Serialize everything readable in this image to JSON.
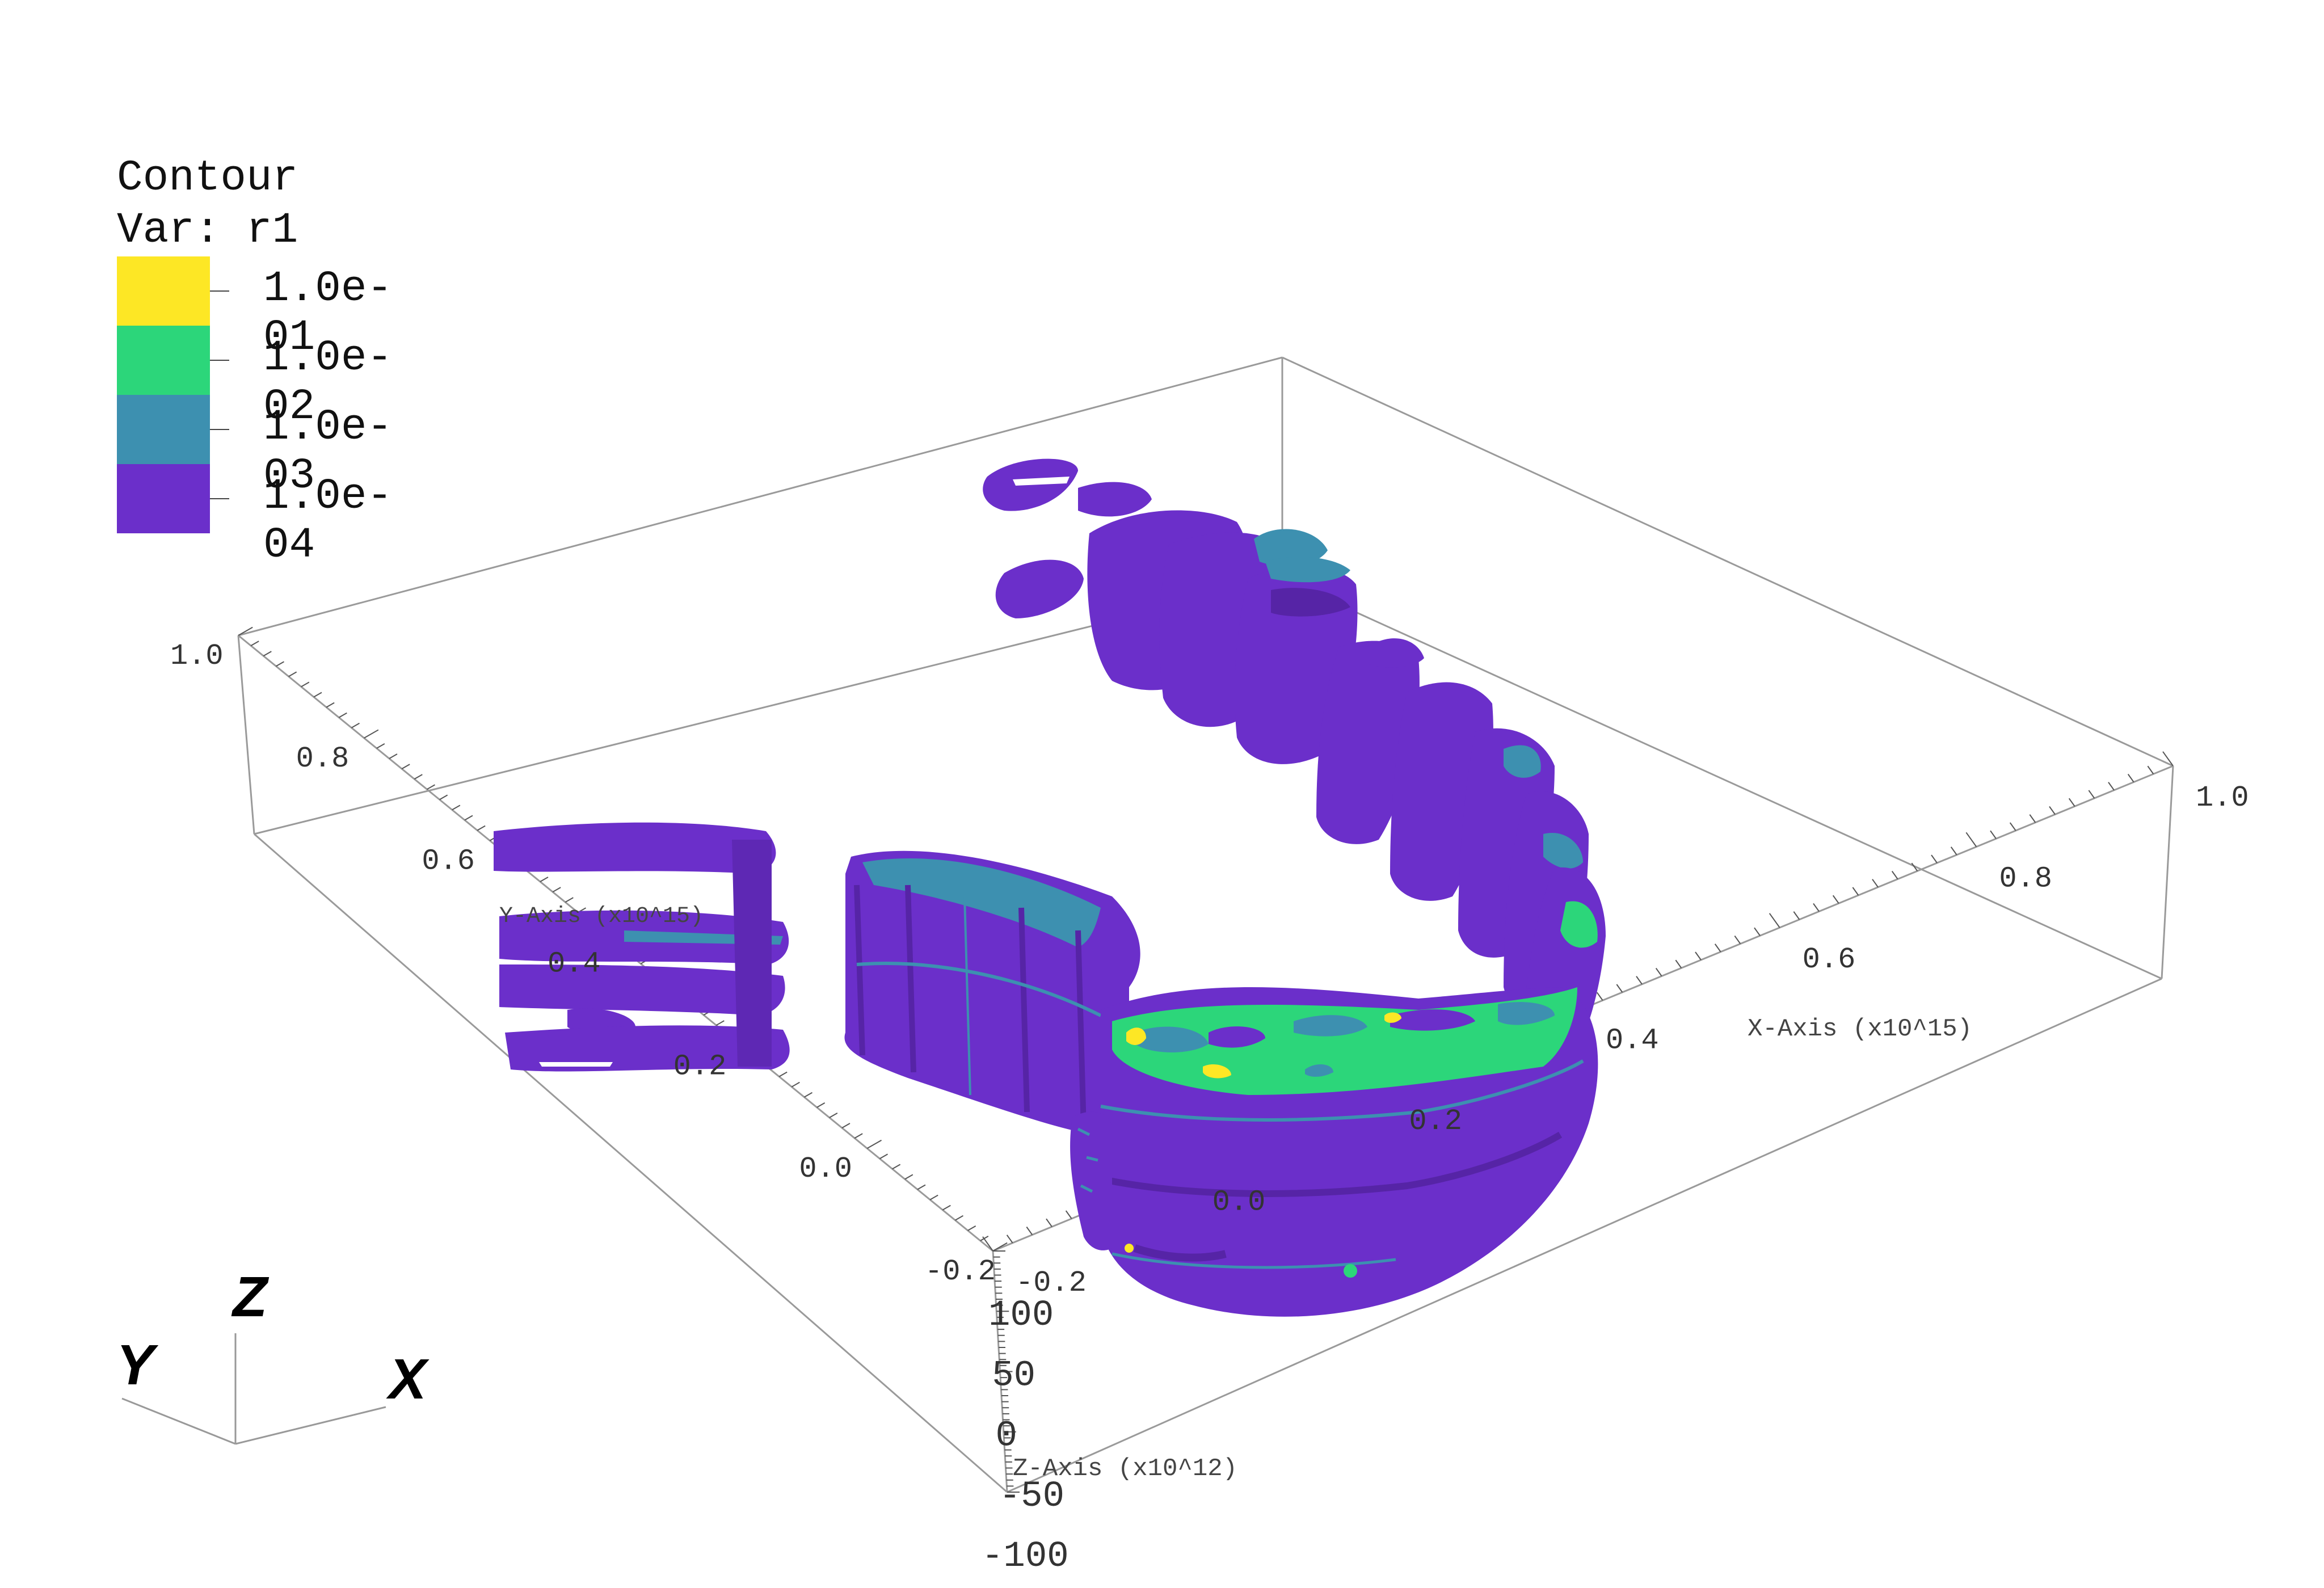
{
  "chart_data": {
    "type": "contour-3d",
    "plot": "Contour",
    "variable_line": "Var: r1",
    "levels": [
      {
        "label": "1.0e-01",
        "value": 0.1,
        "color": "#fde725"
      },
      {
        "label": "1.0e-02",
        "value": 0.01,
        "color": "#2cd67a"
      },
      {
        "label": "1.0e-03",
        "value": 0.001,
        "color": "#3d90b0"
      },
      {
        "label": "1.0e-04",
        "value": 0.0001,
        "color": "#6b2fca"
      }
    ],
    "x_axis": {
      "label": "X-Axis (x10^15)",
      "range": [
        -0.2,
        1.0
      ],
      "ticks": [
        "-0.2",
        "0.0",
        "0.2",
        "0.4",
        "0.6",
        "0.8",
        "1.0"
      ]
    },
    "y_axis": {
      "label": "Y-Axis (x10^15)",
      "range": [
        -0.2,
        1.0
      ],
      "ticks": [
        "-0.2",
        "0.0",
        "0.2",
        "0.4",
        "0.6",
        "0.8",
        "1.0"
      ]
    },
    "z_axis": {
      "label": "Z-Axis (x10^12)",
      "range": [
        -100,
        100
      ],
      "ticks": [
        "-100",
        "-50",
        "0",
        "50",
        "100"
      ]
    },
    "triad": {
      "x": "X",
      "y": "Y",
      "z": "Z"
    }
  }
}
